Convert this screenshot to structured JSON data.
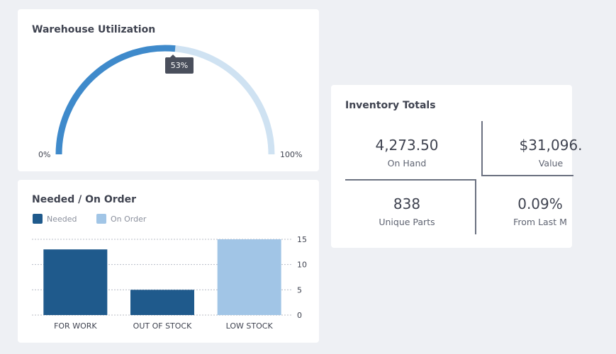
{
  "utilization": {
    "title": "Warehouse Utilization",
    "value_percent": 53,
    "tooltip": "53%",
    "min_label": "0%",
    "max_label": "100%",
    "colors": {
      "filled": "#3f8acb",
      "remaining": "#cfe2f2"
    }
  },
  "chart_data": {
    "type": "bar",
    "title": "Needed / On Order",
    "categories": [
      "FOR WORK",
      "OUT OF STOCK",
      "LOW STOCK"
    ],
    "series": [
      {
        "name": "Needed",
        "color": "#1f5a8c",
        "values": [
          13,
          5,
          null
        ]
      },
      {
        "name": "On Order",
        "color": "#a1c5e6",
        "values": [
          null,
          null,
          15
        ]
      }
    ],
    "ylim": [
      0,
      15
    ],
    "yticks": [
      "0",
      "5",
      "10",
      "15"
    ],
    "grid": true,
    "legend": "top-left",
    "y_axis": "right"
  },
  "inventory": {
    "title": "Inventory Totals",
    "stats": [
      {
        "value": "4,273.50",
        "label": "On Hand"
      },
      {
        "value": "$31,096.",
        "label": "Value"
      },
      {
        "value": "838",
        "label": "Unique Parts"
      },
      {
        "value": "0.09%",
        "label": "From Last M"
      }
    ]
  }
}
